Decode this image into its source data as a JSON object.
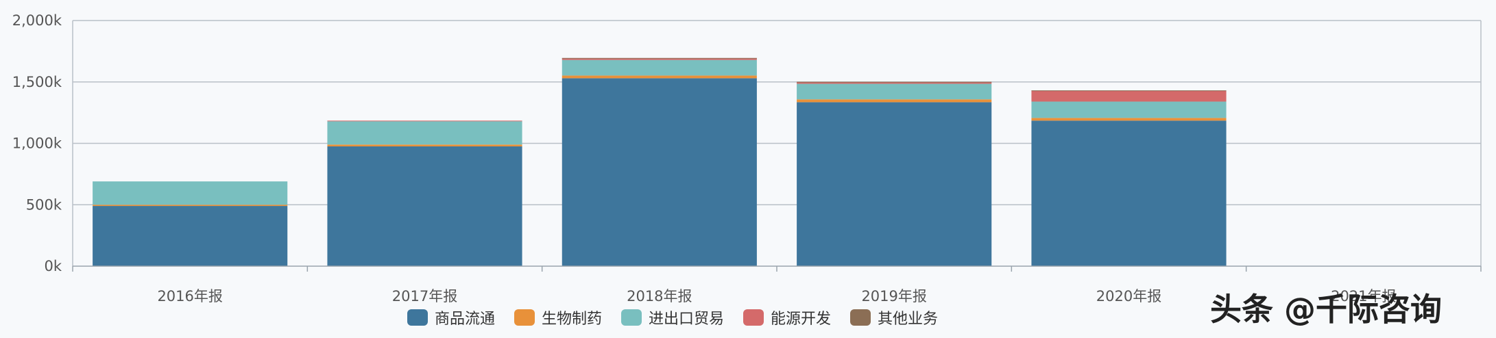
{
  "chart_data": {
    "type": "bar",
    "stacked": true,
    "categories": [
      "2016年报",
      "2017年报",
      "2018年报",
      "2019年报",
      "2020年报",
      "2021年报"
    ],
    "series": [
      {
        "name": "商品流通",
        "color": "#3e769c",
        "values": [
          490,
          975,
          1530,
          1335,
          1185,
          null
        ]
      },
      {
        "name": "生物制药",
        "color": "#e8913a",
        "values": [
          10,
          15,
          22,
          23,
          22,
          null
        ]
      },
      {
        "name": "进出口贸易",
        "color": "#79bfbf",
        "values": [
          190,
          190,
          127,
          127,
          133,
          null
        ]
      },
      {
        "name": "能源开发",
        "color": "#d46a6a",
        "values": [
          0,
          5,
          15,
          15,
          90,
          null
        ]
      },
      {
        "name": "其他业务",
        "color": "#8b6e55",
        "values": [
          0,
          0,
          1,
          1,
          1,
          null
        ]
      }
    ],
    "yticks": [
      "0k",
      "500k",
      "1,000k",
      "1,500k",
      "2,000k"
    ],
    "ylim": [
      0,
      2000
    ],
    "unit": "k",
    "grid": true,
    "legend_position": "bottom-center"
  },
  "watermark": "头条 @千际咨询"
}
